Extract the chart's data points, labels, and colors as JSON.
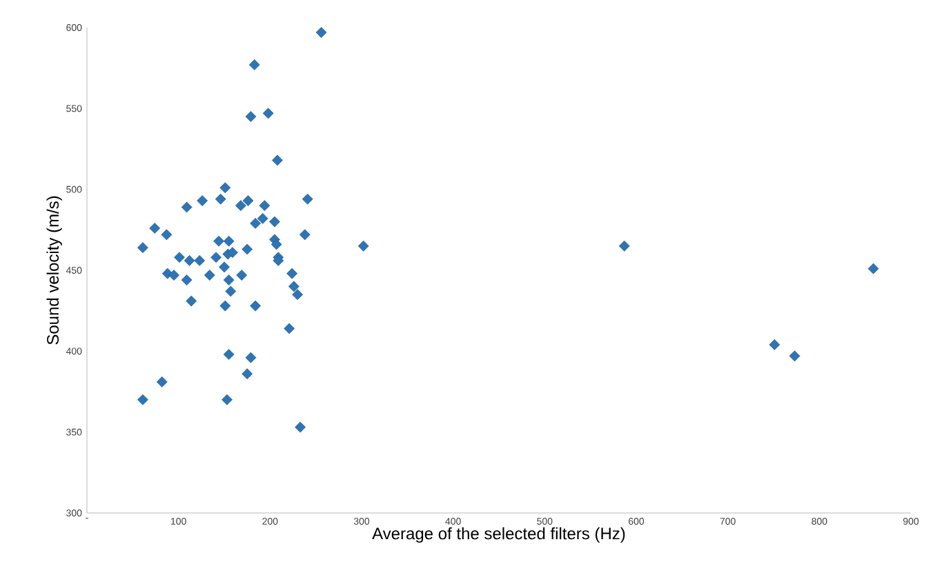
{
  "chart_data": {
    "type": "scatter",
    "xlabel": "Average of the selected filters (Hz)",
    "ylabel": "Sound velocity (m/s)",
    "xlim": [
      0,
      900
    ],
    "ylim": [
      300,
      600
    ],
    "xticks": [
      {
        "value": 0,
        "label": "-"
      },
      100,
      200,
      300,
      400,
      500,
      600,
      700,
      800,
      900
    ],
    "yticks": [
      300,
      350,
      400,
      450,
      500,
      550,
      600
    ],
    "grid": false,
    "marker": "diamond",
    "series": [
      {
        "color": "#2e75b6",
        "x": [
          256,
          183,
          179,
          198,
          208,
          151,
          109,
          126,
          146,
          168,
          176,
          194,
          184,
          192,
          205,
          241,
          238,
          302,
          587,
          751,
          773,
          859,
          74,
          87,
          61,
          205,
          207,
          144,
          155,
          175,
          209,
          101,
          112,
          123,
          141,
          154,
          159,
          88,
          95,
          109,
          134,
          150,
          155,
          169,
          157,
          114,
          151,
          184,
          209,
          224,
          226,
          230,
          221,
          155,
          179,
          175,
          82,
          61,
          153,
          233
        ],
        "values": [
          597,
          577,
          545,
          547,
          518,
          501,
          489,
          493,
          494,
          490,
          493,
          490,
          479,
          482,
          480,
          494,
          472,
          465,
          465,
          404,
          397,
          451,
          476,
          472,
          464,
          469,
          466,
          468,
          468,
          463,
          458,
          458,
          456,
          456,
          458,
          460,
          461,
          448,
          447,
          444,
          447,
          452,
          444,
          447,
          437,
          431,
          428,
          428,
          456,
          448,
          440,
          435,
          414,
          398,
          396,
          386,
          381,
          370,
          370,
          353
        ]
      }
    ]
  }
}
